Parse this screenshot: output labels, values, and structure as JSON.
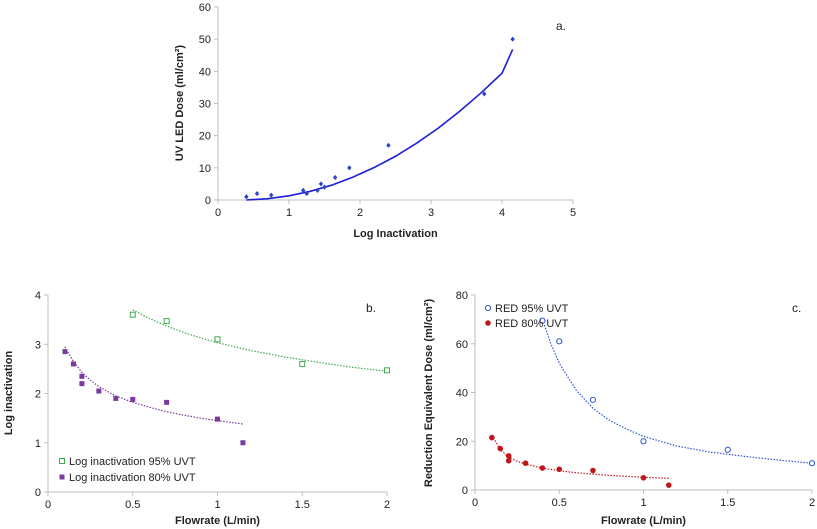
{
  "chart_data": [
    {
      "panel": "a.",
      "type": "scatter",
      "xlabel": "Log Inactivation",
      "ylabel": "UV LED Dose (ml/cm²)",
      "xlim": [
        0,
        5
      ],
      "ylim": [
        0,
        60
      ],
      "xticks": [
        "0",
        "1",
        "2",
        "3",
        "4",
        "5"
      ],
      "yticks": [
        "0",
        "10",
        "20",
        "30",
        "40",
        "50",
        "60"
      ],
      "grid": false,
      "colors": {
        "points": "#2f45c8",
        "trend": "#1f1fd6"
      },
      "series": [
        {
          "marker": "diamond",
          "x": [
            0.4,
            0.55,
            0.75,
            1.2,
            1.25,
            1.4,
            1.45,
            1.5,
            1.65,
            1.85,
            2.4,
            3.75,
            4.15
          ],
          "y": [
            1,
            2,
            1.5,
            3,
            2,
            3,
            5,
            4,
            7,
            10,
            17,
            33,
            50
          ]
        }
      ],
      "trendline": {
        "style": "solid",
        "curve": "polynomial",
        "x": [
          0.4,
          0.7,
          1.0,
          1.3,
          1.6,
          1.9,
          2.2,
          2.5,
          2.8,
          3.1,
          3.4,
          3.7,
          4.0,
          4.15
        ],
        "y": [
          0,
          0.4,
          1.3,
          2.7,
          4.6,
          7.1,
          10.1,
          13.6,
          17.7,
          22.3,
          27.5,
          33.2,
          39.4,
          46.8
        ]
      }
    },
    {
      "panel": "b.",
      "type": "scatter",
      "xlabel": "Flowrate (L/min)",
      "ylabel": "Log inactivation",
      "xlim": [
        0,
        2
      ],
      "ylim": [
        0,
        4
      ],
      "xticks": [
        "0",
        "0.5",
        "1",
        "1.5",
        "2"
      ],
      "yticks": [
        "0",
        "1",
        "2",
        "3",
        "4"
      ],
      "grid": false,
      "legend_position": "bottom-left",
      "series": [
        {
          "name": "Log inactivation 95% UVT",
          "marker": "open-square",
          "color": "#3daa4b",
          "x": [
            0.5,
            0.7,
            1.0,
            1.5,
            2.0
          ],
          "y": [
            3.6,
            3.47,
            3.1,
            2.6,
            2.47
          ],
          "trend_x": [
            0.5,
            0.6,
            0.7,
            0.8,
            0.9,
            1.0,
            1.2,
            1.4,
            1.6,
            1.8,
            2.0
          ],
          "trend_y": [
            3.7,
            3.52,
            3.37,
            3.24,
            3.13,
            3.03,
            2.87,
            2.74,
            2.63,
            2.53,
            2.45
          ]
        },
        {
          "name": "Log inactivation 80% UVT",
          "marker": "filled-square",
          "color": "#7a3a9e",
          "x": [
            0.1,
            0.15,
            0.2,
            0.2,
            0.3,
            0.4,
            0.5,
            0.7,
            1.0,
            1.15
          ],
          "y": [
            2.85,
            2.6,
            2.35,
            2.2,
            2.05,
            1.9,
            1.88,
            1.82,
            1.48,
            1.0
          ],
          "trend_x": [
            0.1,
            0.15,
            0.2,
            0.25,
            0.3,
            0.4,
            0.5,
            0.6,
            0.7,
            0.8,
            0.9,
            1.0,
            1.15
          ],
          "trend_y": [
            2.95,
            2.65,
            2.43,
            2.27,
            2.14,
            1.95,
            1.82,
            1.72,
            1.63,
            1.56,
            1.5,
            1.45,
            1.38
          ]
        }
      ]
    },
    {
      "panel": "c.",
      "type": "scatter",
      "xlabel": "Flowrate (L/min)",
      "ylabel": "Reduction Equivalent Dose (ml/cm²)",
      "xlim": [
        0,
        2
      ],
      "ylim": [
        0,
        80
      ],
      "xticks": [
        "0",
        "0.5",
        "1",
        "1.5",
        "2"
      ],
      "yticks": [
        "0",
        "20",
        "40",
        "60",
        "80"
      ],
      "grid": false,
      "legend_position": "top-left",
      "series": [
        {
          "name": "RED 95% UVT",
          "marker": "open-circle",
          "color": "#2f55d4",
          "x": [
            0.4,
            0.5,
            0.7,
            1.0,
            1.5,
            2.0
          ],
          "y": [
            69.5,
            61,
            37,
            20,
            16.5,
            11
          ],
          "trend_x": [
            0.4,
            0.45,
            0.5,
            0.6,
            0.7,
            0.8,
            0.9,
            1.0,
            1.2,
            1.4,
            1.6,
            1.8,
            2.0
          ],
          "trend_y": [
            70,
            60,
            52,
            41,
            33.5,
            28.5,
            25,
            22,
            18,
            15.5,
            13.8,
            12.3,
            11
          ]
        },
        {
          "name": "RED 80% UVT",
          "marker": "filled-circle",
          "color": "#c0171b",
          "x": [
            0.1,
            0.15,
            0.2,
            0.2,
            0.3,
            0.4,
            0.5,
            0.7,
            1.0,
            1.15
          ],
          "y": [
            21.5,
            17,
            14,
            12,
            11,
            9,
            8.5,
            8,
            5,
            2
          ],
          "trend_x": [
            0.1,
            0.15,
            0.2,
            0.25,
            0.3,
            0.4,
            0.5,
            0.6,
            0.7,
            0.8,
            0.9,
            1.0,
            1.15
          ],
          "trend_y": [
            22.5,
            16.5,
            13.5,
            11.8,
            10.6,
            9.0,
            7.9,
            7.1,
            6.5,
            6.0,
            5.6,
            5.2,
            4.8
          ]
        }
      ]
    }
  ]
}
